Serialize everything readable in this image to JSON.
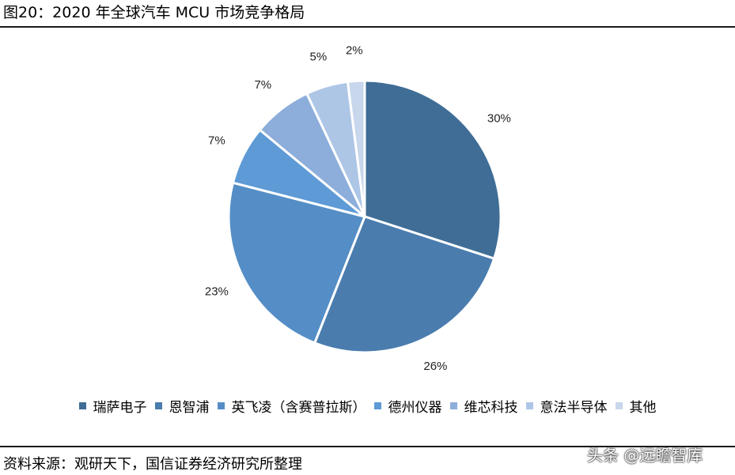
{
  "header": {
    "title": "图20：2020 年全球汽车 MCU 市场竞争格局"
  },
  "chart_data": {
    "type": "pie",
    "title": "",
    "start_angle_deg": 0,
    "direction": "clockwise",
    "legend_position": "bottom",
    "slices": [
      {
        "label": "瑞萨电子",
        "value": 30,
        "display": "30%",
        "color": "#3f6d96"
      },
      {
        "label": "恩智浦",
        "value": 26,
        "display": "26%",
        "color": "#4a7cae"
      },
      {
        "label": "英飞凌（含赛普拉斯）",
        "value": 23,
        "display": "23%",
        "color": "#558ec6"
      },
      {
        "label": "德州仪器",
        "value": 7,
        "display": "7%",
        "color": "#5d9ad6"
      },
      {
        "label": "维芯科技",
        "value": 7,
        "display": "7%",
        "color": "#8daedb"
      },
      {
        "label": "意法半导体",
        "value": 5,
        "display": "5%",
        "color": "#aec6e6"
      },
      {
        "label": "其他",
        "value": 2,
        "display": "2%",
        "color": "#c8d7ec"
      }
    ]
  },
  "footer": {
    "source": "资料来源：观研天下，国信证券经济研究所整理",
    "watermark": "头条 @远瞻智库"
  }
}
